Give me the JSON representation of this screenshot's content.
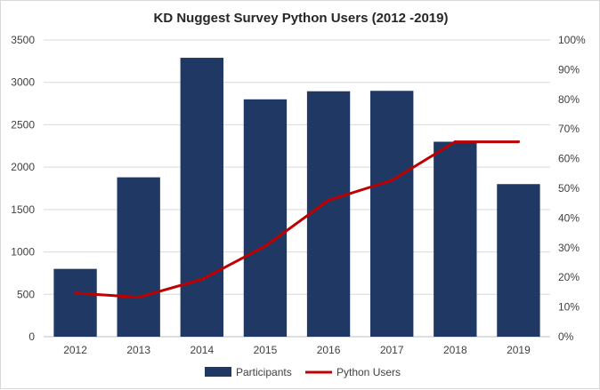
{
  "chart_data": {
    "type": "bar",
    "title": "KD Nuggest Survey Python Users (2012 -2019)",
    "categories": [
      "2012",
      "2013",
      "2014",
      "2015",
      "2016",
      "2017",
      "2018",
      "2019"
    ],
    "series": [
      {
        "name": "Participants",
        "type": "bar",
        "axis": "left",
        "color": "#203864",
        "values": [
          800,
          1880,
          3290,
          2800,
          2895,
          2900,
          2300,
          1800
        ]
      },
      {
        "name": "Python Users",
        "type": "line",
        "axis": "right",
        "color": "#c00000",
        "values": [
          0.147,
          0.133,
          0.193,
          0.305,
          0.46,
          0.527,
          0.657,
          0.657
        ]
      }
    ],
    "y_left": {
      "ylim": [
        0,
        3500
      ],
      "ticks": [
        "0",
        "500",
        "1000",
        "1500",
        "2000",
        "2500",
        "3000",
        "3500"
      ]
    },
    "y_right": {
      "ylim": [
        0,
        1
      ],
      "ticks": [
        "0%",
        "10%",
        "20%",
        "30%",
        "40%",
        "50%",
        "60%",
        "70%",
        "80%",
        "90%",
        "100%"
      ]
    },
    "xlabel": "",
    "ylabel": "",
    "grid": true,
    "legend": "bottom"
  }
}
